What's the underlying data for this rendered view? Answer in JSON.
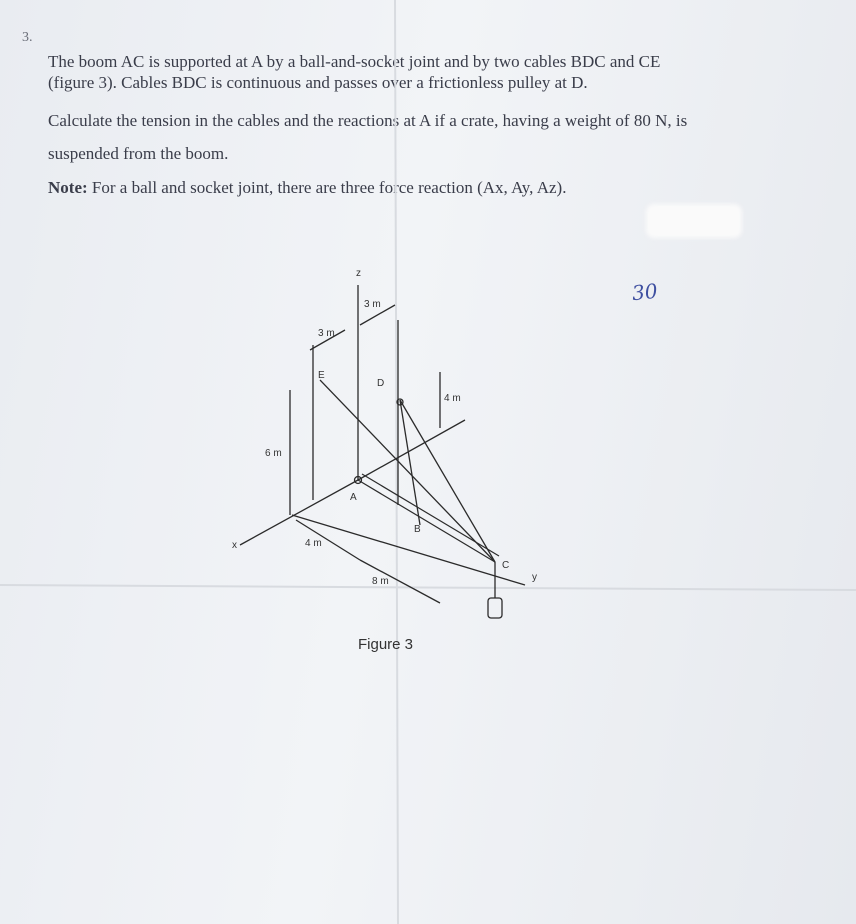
{
  "problem": {
    "number": "3.",
    "lines": [
      "The boom AC is supported at A by a ball-and-socket joint and by two cables BDC and CE",
      "(figure 3). Cables BDC is continuous and passes over a frictionless pulley at D.",
      "Calculate the tension in the cables and the reactions at A if a crate, having a weight of 80 N, is",
      "suspended from the boom."
    ],
    "note": {
      "label": "Note:",
      "text": "For a ball and socket joint, there are three force reaction (Ax, Ay, Az)."
    }
  },
  "handwritten_mark": "30",
  "figure": {
    "caption": "Figure 3",
    "labels": {
      "z": "z",
      "dim_3m_top": "3 m",
      "dim_3m_left": "3 m",
      "E": "E",
      "D": "D",
      "dim_4m_right": "4 m",
      "dim_6m": "6 m",
      "A": "A",
      "B": "B",
      "dim_4m_bottom": "4 m",
      "dim_8m": "8 m",
      "C": "C",
      "x": "x",
      "y": "y"
    }
  }
}
